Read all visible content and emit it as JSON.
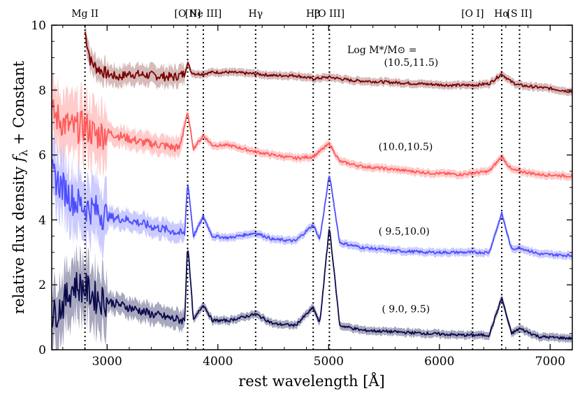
{
  "chart_data": {
    "type": "line",
    "xlabel": "rest wavelength [Å]",
    "ylabel": "relative flux density f_λ + Constant",
    "xlim": [
      2500,
      7200
    ],
    "ylim": [
      0,
      10
    ],
    "xticks": [
      3000,
      4000,
      5000,
      6000,
      7000
    ],
    "yticks": [
      0,
      2,
      4,
      6,
      8,
      10
    ],
    "legend_title": "Log M*/M⊙ =",
    "emission_lines": [
      {
        "label": "Mg II",
        "wavelength": 2800
      },
      {
        "label": "[O II]",
        "wavelength": 3727
      },
      {
        "label": "[Ne III]",
        "wavelength": 3869
      },
      {
        "label": "Hγ",
        "wavelength": 4341
      },
      {
        "label": "Hβ",
        "wavelength": 4861
      },
      {
        "label": "[O III]",
        "wavelength": 5007
      },
      {
        "label": "[O I]",
        "wavelength": 6300
      },
      {
        "label": "Hα",
        "wavelength": 6563
      },
      {
        "label": "[S II]",
        "wavelength": 6724
      }
    ],
    "series": [
      {
        "name": "(10.5,11.5)",
        "color": "#7a0000",
        "band_color": "#c9a3a3",
        "start": 2800,
        "x": [
          2800,
          2850,
          2900,
          3000,
          3100,
          3200,
          3400,
          3600,
          3700,
          3727,
          3760,
          3800,
          3869,
          3950,
          4100,
          4341,
          4500,
          4700,
          4861,
          5007,
          5200,
          5500,
          5800,
          6100,
          6300,
          6450,
          6563,
          6650,
          6724,
          6850,
          7000,
          7200
        ],
        "y": [
          9.8,
          8.9,
          8.7,
          8.5,
          8.4,
          8.5,
          8.45,
          8.4,
          8.5,
          8.85,
          8.55,
          8.5,
          8.5,
          8.55,
          8.55,
          8.5,
          8.45,
          8.45,
          8.35,
          8.4,
          8.3,
          8.25,
          8.2,
          8.15,
          8.15,
          8.2,
          8.5,
          8.25,
          8.15,
          8.1,
          8.05,
          7.95
        ]
      },
      {
        "name": "(10.0,10.5)",
        "color": "#ff5a5a",
        "band_color": "#ffb9b9",
        "start": 2500,
        "x": [
          2500,
          2600,
          2700,
          2800,
          2900,
          3000,
          3100,
          3300,
          3500,
          3650,
          3727,
          3780,
          3869,
          3950,
          4100,
          4341,
          4500,
          4700,
          4861,
          5007,
          5100,
          5300,
          5600,
          5900,
          6200,
          6450,
          6563,
          6650,
          6724,
          6900,
          7200
        ],
        "y": [
          7.3,
          7.0,
          6.8,
          6.9,
          6.6,
          6.7,
          6.6,
          6.4,
          6.3,
          6.2,
          7.3,
          6.2,
          6.6,
          6.3,
          6.3,
          6.1,
          6.0,
          5.9,
          5.95,
          6.35,
          5.8,
          5.65,
          5.55,
          5.45,
          5.4,
          5.5,
          5.95,
          5.55,
          5.5,
          5.4,
          5.35
        ]
      },
      {
        "name": "( 9.5,10.0)",
        "color": "#4d4dff",
        "band_color": "#b9b9ff",
        "start": 2500,
        "x": [
          2500,
          2600,
          2700,
          2800,
          2900,
          3000,
          3200,
          3400,
          3600,
          3700,
          3727,
          3780,
          3869,
          3950,
          4100,
          4341,
          4500,
          4700,
          4861,
          4920,
          5007,
          5100,
          5300,
          5600,
          5900,
          6200,
          6450,
          6563,
          6650,
          6724,
          6900,
          7200
        ],
        "y": [
          5.4,
          5.0,
          4.6,
          4.4,
          4.3,
          4.1,
          4.0,
          3.8,
          3.65,
          3.55,
          5.2,
          3.5,
          4.1,
          3.5,
          3.45,
          3.6,
          3.4,
          3.35,
          3.85,
          3.4,
          5.4,
          3.3,
          3.15,
          3.05,
          3.0,
          3.0,
          3.0,
          4.2,
          3.1,
          3.15,
          2.95,
          2.9
        ]
      },
      {
        "name": "( 9.0, 9.5)",
        "color": "#0a0a4a",
        "band_color": "#8a8aaa",
        "start": 2500,
        "x": [
          2500,
          2600,
          2700,
          2800,
          2900,
          3000,
          3200,
          3400,
          3600,
          3700,
          3727,
          3780,
          3869,
          3950,
          4100,
          4341,
          4500,
          4700,
          4861,
          4920,
          5007,
          5100,
          5300,
          5600,
          5900,
          6200,
          6450,
          6563,
          6650,
          6724,
          6900,
          7200
        ],
        "y": [
          1.0,
          1.4,
          2.0,
          1.9,
          1.6,
          1.5,
          1.3,
          1.1,
          0.95,
          0.9,
          3.3,
          0.9,
          1.4,
          0.9,
          0.9,
          1.1,
          0.8,
          0.75,
          1.3,
          0.8,
          3.8,
          0.75,
          0.6,
          0.55,
          0.5,
          0.45,
          0.45,
          1.6,
          0.5,
          0.65,
          0.4,
          0.35
        ]
      }
    ]
  }
}
